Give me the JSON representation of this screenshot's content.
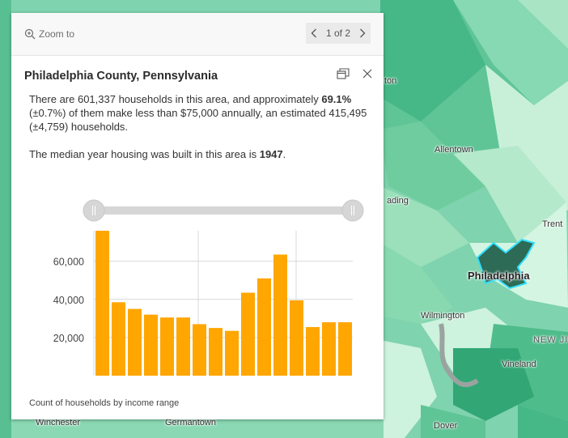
{
  "map": {
    "labels": [
      {
        "text": "ton",
        "style": ""
      },
      {
        "text": "Allentown",
        "style": ""
      },
      {
        "text": "ading",
        "style": ""
      },
      {
        "text": "Trent",
        "style": ""
      },
      {
        "text": "Philadelphia",
        "style": "big"
      },
      {
        "text": "Wilmington",
        "style": ""
      },
      {
        "text": "NEW JI",
        "style": "wide"
      },
      {
        "text": "Vineland",
        "style": ""
      },
      {
        "text": "Dover",
        "style": ""
      },
      {
        "text": "Winchester",
        "style": ""
      },
      {
        "text": "Germantown",
        "style": ""
      }
    ]
  },
  "popup": {
    "zoom_label": "Zoom to",
    "zoom_icon": "zoom-in-icon",
    "pager": {
      "text": "1 of 2"
    },
    "title": "Philadelphia County, Pennsylvania",
    "para1": {
      "a": "There are 601,337 households in this area, and approximately ",
      "pct": "69.1%",
      "b": " (±0.7%) of them make less than $75,000 annually, an estimated 415,495 (±4,759) households."
    },
    "para2": {
      "a": "The median year housing was built in this area is ",
      "year": "1947",
      "b": "."
    },
    "caption": "Count of households by income range"
  },
  "chart_data": {
    "type": "bar",
    "values": [
      76000,
      38500,
      35000,
      32000,
      30500,
      30500,
      27000,
      25000,
      23500,
      43500,
      51000,
      63500,
      39500,
      25500,
      28000,
      28000
    ],
    "yticks": [
      20000,
      40000,
      60000
    ],
    "ytick_labels": [
      "20,000",
      "40,000",
      "60,000"
    ],
    "ylim": [
      0,
      76000
    ],
    "bar_color": "#ffa600",
    "grid": true,
    "xlabel": "Count of households by income range",
    "slider": true
  }
}
